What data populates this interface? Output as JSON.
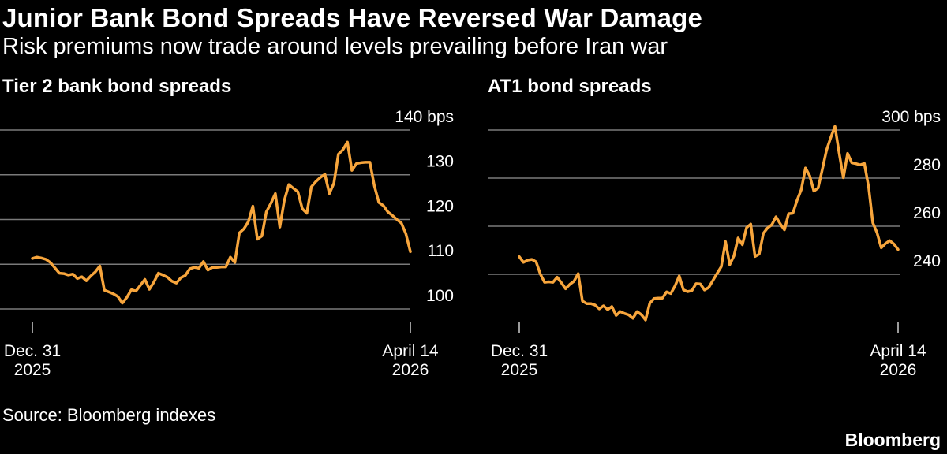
{
  "title": "Junior Bank Bond Spreads Have Reversed War Damage",
  "subtitle": "Risk premiums now trade around levels prevailing before Iran war",
  "source": "Source: Bloomberg indexes",
  "brand": "Bloomberg",
  "colors": {
    "line": "#f7a53c",
    "grid": "#7a7a7a",
    "background": "#000000",
    "text": "#ffffff"
  },
  "chart_data": [
    {
      "type": "line",
      "title": "Tier 2 bank bond spreads",
      "unit": "bps",
      "ylim": [
        97,
        140
      ],
      "yticks": [
        100,
        110,
        120,
        130,
        140
      ],
      "ytick_labels": [
        "100",
        "110",
        "120",
        "130",
        "140 bps"
      ],
      "x_start": "Dec. 31",
      "x_start_year": "2025",
      "x_end": "April 14",
      "x_end_year": "2026",
      "series": [
        {
          "name": "Tier 2",
          "values": [
            111.3,
            111.6,
            111.4,
            111.1,
            110.4,
            109.2,
            108.0,
            107.9,
            107.6,
            107.8,
            106.8,
            107.2,
            106.3,
            107.4,
            108.3,
            109.6,
            104.2,
            103.8,
            103.4,
            102.8,
            101.3,
            102.6,
            104.3,
            104.0,
            105.3,
            106.6,
            104.4,
            106.0,
            108.0,
            107.6,
            107.1,
            106.2,
            105.8,
            107.0,
            107.5,
            109.0,
            109.3,
            109.1,
            110.6,
            108.7,
            109.3,
            109.3,
            109.4,
            109.4,
            111.6,
            110.4,
            117.0,
            117.9,
            119.5,
            123.0,
            115.6,
            116.3,
            121.7,
            123.6,
            125.8,
            118.3,
            124.3,
            127.8,
            127.0,
            126.2,
            122.4,
            121.4,
            127.3,
            128.5,
            129.4,
            130.1,
            125.8,
            128.1,
            134.6,
            135.6,
            137.3,
            131.0,
            132.5,
            132.7,
            132.8,
            132.8,
            127.5,
            123.8,
            123.1,
            121.7,
            120.9,
            120.0,
            119.2,
            116.8,
            112.8
          ]
        }
      ]
    },
    {
      "type": "line",
      "title": "AT1 bond spreads",
      "unit": "bps",
      "ylim": [
        220,
        300
      ],
      "yticks": [
        240,
        260,
        280,
        300
      ],
      "ytick_labels": [
        "240",
        "260",
        "280",
        "300 bps"
      ],
      "x_start": "Dec. 31",
      "x_start_year": "2025",
      "x_end": "April 14",
      "x_end_year": "2026",
      "series": [
        {
          "name": "AT1",
          "values": [
            247.3,
            245.0,
            245.9,
            246.2,
            245.2,
            240.1,
            236.7,
            236.9,
            236.7,
            238.8,
            236.5,
            234.0,
            235.8,
            237.1,
            240.3,
            228.9,
            227.8,
            227.8,
            227.2,
            225.6,
            226.9,
            225.3,
            226.6,
            222.9,
            224.5,
            223.7,
            223.1,
            221.7,
            224.5,
            223.2,
            221.0,
            227.9,
            229.9,
            230.1,
            230.1,
            232.7,
            232.0,
            235.1,
            239.3,
            233.5,
            232.8,
            233.2,
            236.1,
            236.0,
            233.5,
            234.5,
            237.4,
            240.4,
            243.2,
            253.6,
            244.0,
            247.6,
            255.1,
            252.3,
            259.4,
            260.9,
            247.4,
            248.4,
            257.0,
            259.3,
            260.6,
            263.9,
            261.0,
            258.5,
            265.2,
            265.4,
            270.8,
            275.2,
            284.2,
            281.0,
            274.6,
            275.9,
            283.6,
            291.6,
            296.9,
            301.5,
            290.5,
            280.2,
            290.3,
            286.4,
            286.0,
            285.5,
            286.1,
            276.3,
            261.4,
            257.3,
            251.0,
            252.8,
            254.0,
            252.6,
            250.3
          ]
        }
      ]
    }
  ]
}
